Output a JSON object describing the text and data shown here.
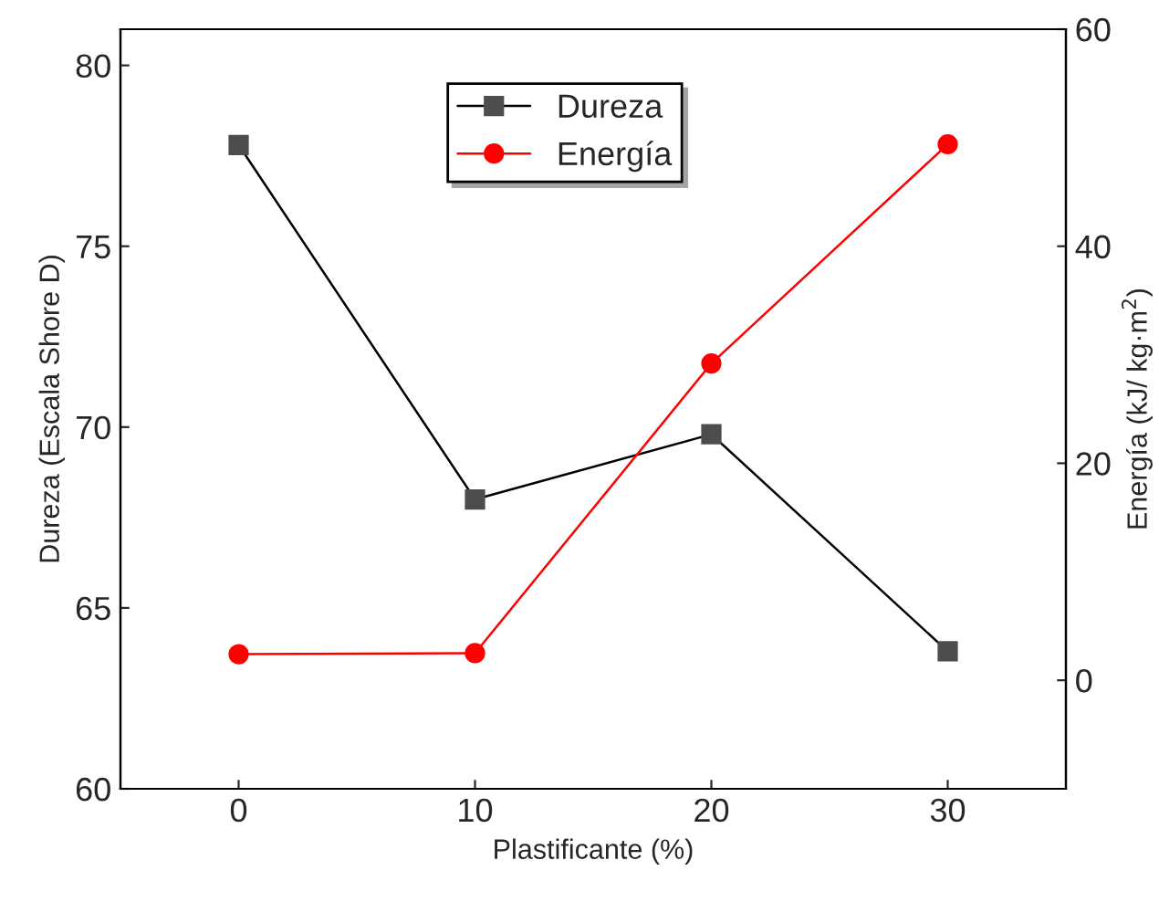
{
  "chart_data": {
    "type": "line",
    "xlabel": "Plastificante (%)",
    "ylabel": "Dureza (Escala Shore D)",
    "y2label": "Energía (kJ/ kg·m$^{2}$)",
    "x": [
      0,
      10,
      20,
      30
    ],
    "series": [
      {
        "name": "Dureza",
        "color": "#4d4d4d",
        "marker": "square",
        "values": [
          77.8,
          68.0,
          69.8,
          63.8
        ]
      },
      {
        "name": "Energía",
        "color": "#ff0000",
        "marker": "circle",
        "axis": "y2",
        "values": [
          2.4,
          2.5,
          29.2,
          49.4
        ]
      }
    ],
    "xlim": [
      -5,
      35
    ],
    "xticks": [
      0,
      10,
      20,
      30
    ],
    "ylim": [
      60,
      81
    ],
    "yticks": [
      60,
      65,
      70,
      75,
      80
    ],
    "y2lim": [
      -10,
      60
    ],
    "y2ticks": [
      0,
      20,
      40,
      60
    ],
    "grid": false,
    "legend": "top",
    "line_style": "solid"
  }
}
